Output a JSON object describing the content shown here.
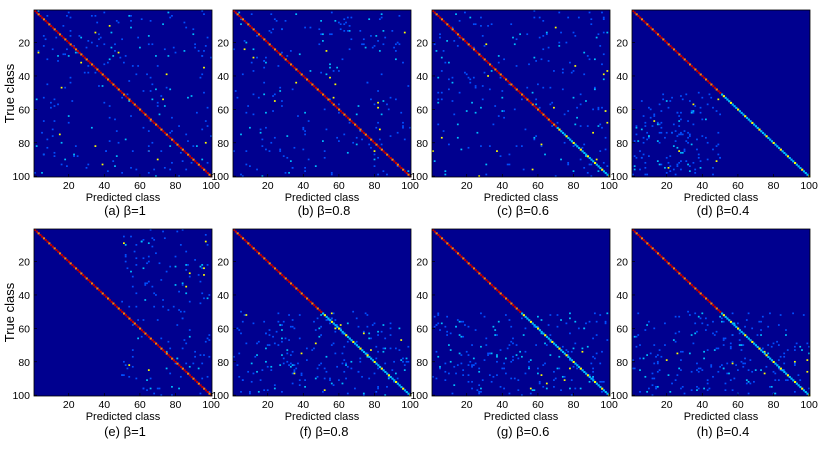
{
  "figure": {
    "y_axis_label": "True class",
    "x_axis_label": "Predicted class"
  },
  "chart_data": [
    {
      "type": "heatmap",
      "panel": "(a)",
      "beta": "1",
      "caption": "(a) β=1",
      "xlabel": "Predicted class",
      "ylabel": "True class",
      "x_ticks": [
        20,
        40,
        60,
        80,
        100
      ],
      "y_ticks": [
        20,
        40,
        60,
        80,
        100
      ],
      "xlim": [
        1,
        100
      ],
      "ylim": [
        1,
        100
      ],
      "colormap": "jet",
      "diagonal_peak_rows": [
        1,
        100
      ],
      "offdiag_scatter_rows": [
        1,
        100
      ],
      "offdiag_scatter_cols": [
        1,
        100
      ]
    },
    {
      "type": "heatmap",
      "panel": "(b)",
      "beta": "0.8",
      "caption": "(b) β=0.8",
      "xlabel": "Predicted class",
      "ylabel": "",
      "x_ticks": [
        20,
        40,
        60,
        80,
        100
      ],
      "y_ticks": [
        20,
        40,
        60,
        80,
        100
      ],
      "xlim": [
        1,
        100
      ],
      "ylim": [
        1,
        100
      ],
      "colormap": "jet",
      "diagonal_peak_rows": [
        1,
        100
      ],
      "offdiag_scatter_rows": [
        1,
        100
      ],
      "offdiag_scatter_cols": [
        1,
        100
      ]
    },
    {
      "type": "heatmap",
      "panel": "(c)",
      "beta": "0.6",
      "caption": "(c) β=0.6",
      "xlabel": "Predicted class",
      "ylabel": "",
      "x_ticks": [
        20,
        40,
        60,
        80,
        100
      ],
      "y_ticks": [
        20,
        40,
        60,
        80,
        100
      ],
      "xlim": [
        1,
        100
      ],
      "ylim": [
        1,
        100
      ],
      "colormap": "jet",
      "diagonal_peak_rows": [
        1,
        70
      ],
      "offdiag_scatter_rows": [
        1,
        100
      ],
      "offdiag_scatter_cols": [
        1,
        100
      ]
    },
    {
      "type": "heatmap",
      "panel": "(d)",
      "beta": "0.4",
      "caption": "(d) β=0.4",
      "xlabel": "Predicted class",
      "ylabel": "",
      "x_ticks": [
        20,
        40,
        60,
        80,
        100
      ],
      "y_ticks": [
        20,
        40,
        60,
        80,
        100
      ],
      "xlim": [
        1,
        100
      ],
      "ylim": [
        1,
        100
      ],
      "colormap": "jet",
      "diagonal_peak_rows": [
        1,
        50
      ],
      "offdiag_scatter_rows": [
        50,
        100
      ],
      "offdiag_scatter_cols": [
        1,
        50
      ]
    },
    {
      "type": "heatmap",
      "panel": "(e)",
      "beta": "1",
      "caption": "(e) β=1",
      "xlabel": "Predicted class",
      "ylabel": "True class",
      "x_ticks": [
        20,
        40,
        60,
        80,
        100
      ],
      "y_ticks": [
        20,
        40,
        60,
        80,
        100
      ],
      "xlim": [
        1,
        100
      ],
      "ylim": [
        1,
        100
      ],
      "colormap": "jet",
      "diagonal_peak_rows": [
        1,
        100
      ],
      "offdiag_scatter_rows": [
        1,
        100
      ],
      "offdiag_scatter_cols": [
        50,
        100
      ]
    },
    {
      "type": "heatmap",
      "panel": "(f)",
      "beta": "0.8",
      "caption": "(f) β=0.8",
      "xlabel": "Predicted class",
      "ylabel": "",
      "x_ticks": [
        20,
        40,
        60,
        80,
        100
      ],
      "y_ticks": [
        20,
        40,
        60,
        80,
        100
      ],
      "xlim": [
        1,
        100
      ],
      "ylim": [
        1,
        100
      ],
      "colormap": "jet",
      "diagonal_peak_rows": [
        1,
        50
      ],
      "offdiag_scatter_rows": [
        50,
        100
      ],
      "offdiag_scatter_cols": [
        1,
        100
      ]
    },
    {
      "type": "heatmap",
      "panel": "(g)",
      "beta": "0.6",
      "caption": "(g) β=0.6",
      "xlabel": "Predicted class",
      "ylabel": "",
      "x_ticks": [
        20,
        40,
        60,
        80,
        100
      ],
      "y_ticks": [
        20,
        40,
        60,
        80,
        100
      ],
      "xlim": [
        1,
        100
      ],
      "ylim": [
        1,
        100
      ],
      "colormap": "jet",
      "diagonal_peak_rows": [
        1,
        50
      ],
      "offdiag_scatter_rows": [
        50,
        100
      ],
      "offdiag_scatter_cols": [
        1,
        100
      ]
    },
    {
      "type": "heatmap",
      "panel": "(h)",
      "beta": "0.4",
      "caption": "(h) β=0.4",
      "xlabel": "Predicted class",
      "ylabel": "",
      "x_ticks": [
        20,
        40,
        60,
        80,
        100
      ],
      "y_ticks": [
        20,
        40,
        60,
        80,
        100
      ],
      "xlim": [
        1,
        100
      ],
      "ylim": [
        1,
        100
      ],
      "colormap": "jet",
      "diagonal_peak_rows": [
        1,
        50
      ],
      "offdiag_scatter_rows": [
        50,
        100
      ],
      "offdiag_scatter_cols": [
        1,
        100
      ]
    }
  ],
  "colors": {
    "background": "#00008f",
    "diag_high": "#c00000",
    "diag_mid": "#ff8000",
    "scatter_low": "#0050ff",
    "scatter_mid": "#00c0ff",
    "scatter_high": "#ffff00"
  }
}
